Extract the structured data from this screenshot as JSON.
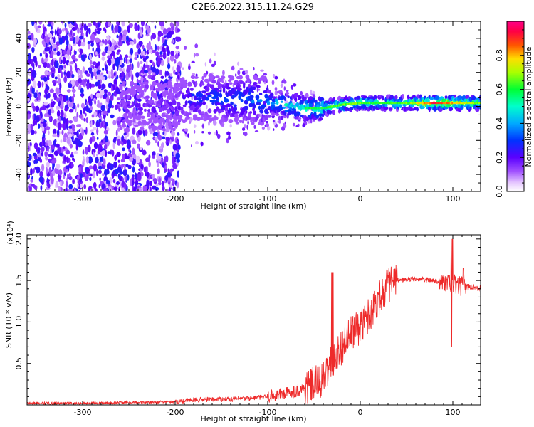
{
  "title": "C2E6.2022.315.11.24.G29",
  "chart_data": [
    {
      "type": "heatmap",
      "xlabel": "Height of straight line (km)",
      "ylabel": "Frequency (Hz)",
      "xlim": [
        -360,
        130
      ],
      "ylim": [
        -50,
        50
      ],
      "x_ticks": [
        -300,
        -200,
        -100,
        0,
        100
      ],
      "y_ticks": [
        -40,
        -20,
        0,
        20,
        40
      ],
      "colorbar": {
        "label": "Normalized spectral amplitude",
        "range": [
          0.0,
          1.0
        ],
        "ticks": [
          0.0,
          0.2,
          0.4,
          0.6,
          0.8
        ]
      },
      "ridge": {
        "x": [
          -360,
          -200,
          -180,
          -150,
          -120,
          -100,
          -80,
          -60,
          -40,
          -20,
          0,
          20,
          50,
          80,
          100,
          130
        ],
        "center_freq": [
          0,
          0,
          6,
          4,
          4,
          3,
          1,
          -1,
          -1,
          1,
          2,
          2,
          2,
          2,
          2,
          2
        ],
        "amplitude": [
          0.15,
          0.2,
          0.3,
          0.32,
          0.35,
          0.4,
          0.5,
          0.55,
          0.55,
          0.6,
          0.6,
          0.55,
          0.6,
          0.85,
          0.75,
          0.6
        ]
      }
    },
    {
      "type": "line",
      "xlabel": "Height of straight line (km)",
      "ylabel": "SNR (10 * v/v)",
      "y_multiplier": "(x10⁴)",
      "xlim": [
        -360,
        130
      ],
      "ylim": [
        0,
        2.05
      ],
      "x_ticks": [
        -300,
        -200,
        -100,
        0,
        100
      ],
      "y_ticks": [
        0.5,
        1.0,
        1.5,
        2.0
      ],
      "y_tick_labels": [
        "0.5",
        "1.0",
        "1.5",
        "2.0"
      ],
      "series": [
        {
          "color": "#ee2a2a",
          "x": [
            -360,
            -300,
            -250,
            -200,
            -180,
            -160,
            -140,
            -120,
            -100,
            -80,
            -60,
            -50,
            -40,
            -30,
            -20,
            -10,
            0,
            10,
            20,
            30,
            40,
            60,
            80,
            90,
            100,
            110,
            120,
            130
          ],
          "y": [
            0.02,
            0.02,
            0.03,
            0.04,
            0.06,
            0.07,
            0.07,
            0.08,
            0.1,
            0.14,
            0.2,
            0.25,
            0.3,
            0.55,
            0.7,
            0.85,
            0.95,
            1.1,
            1.3,
            1.45,
            1.5,
            1.52,
            1.5,
            1.48,
            1.45,
            1.43,
            1.42,
            1.42
          ]
        }
      ]
    }
  ]
}
